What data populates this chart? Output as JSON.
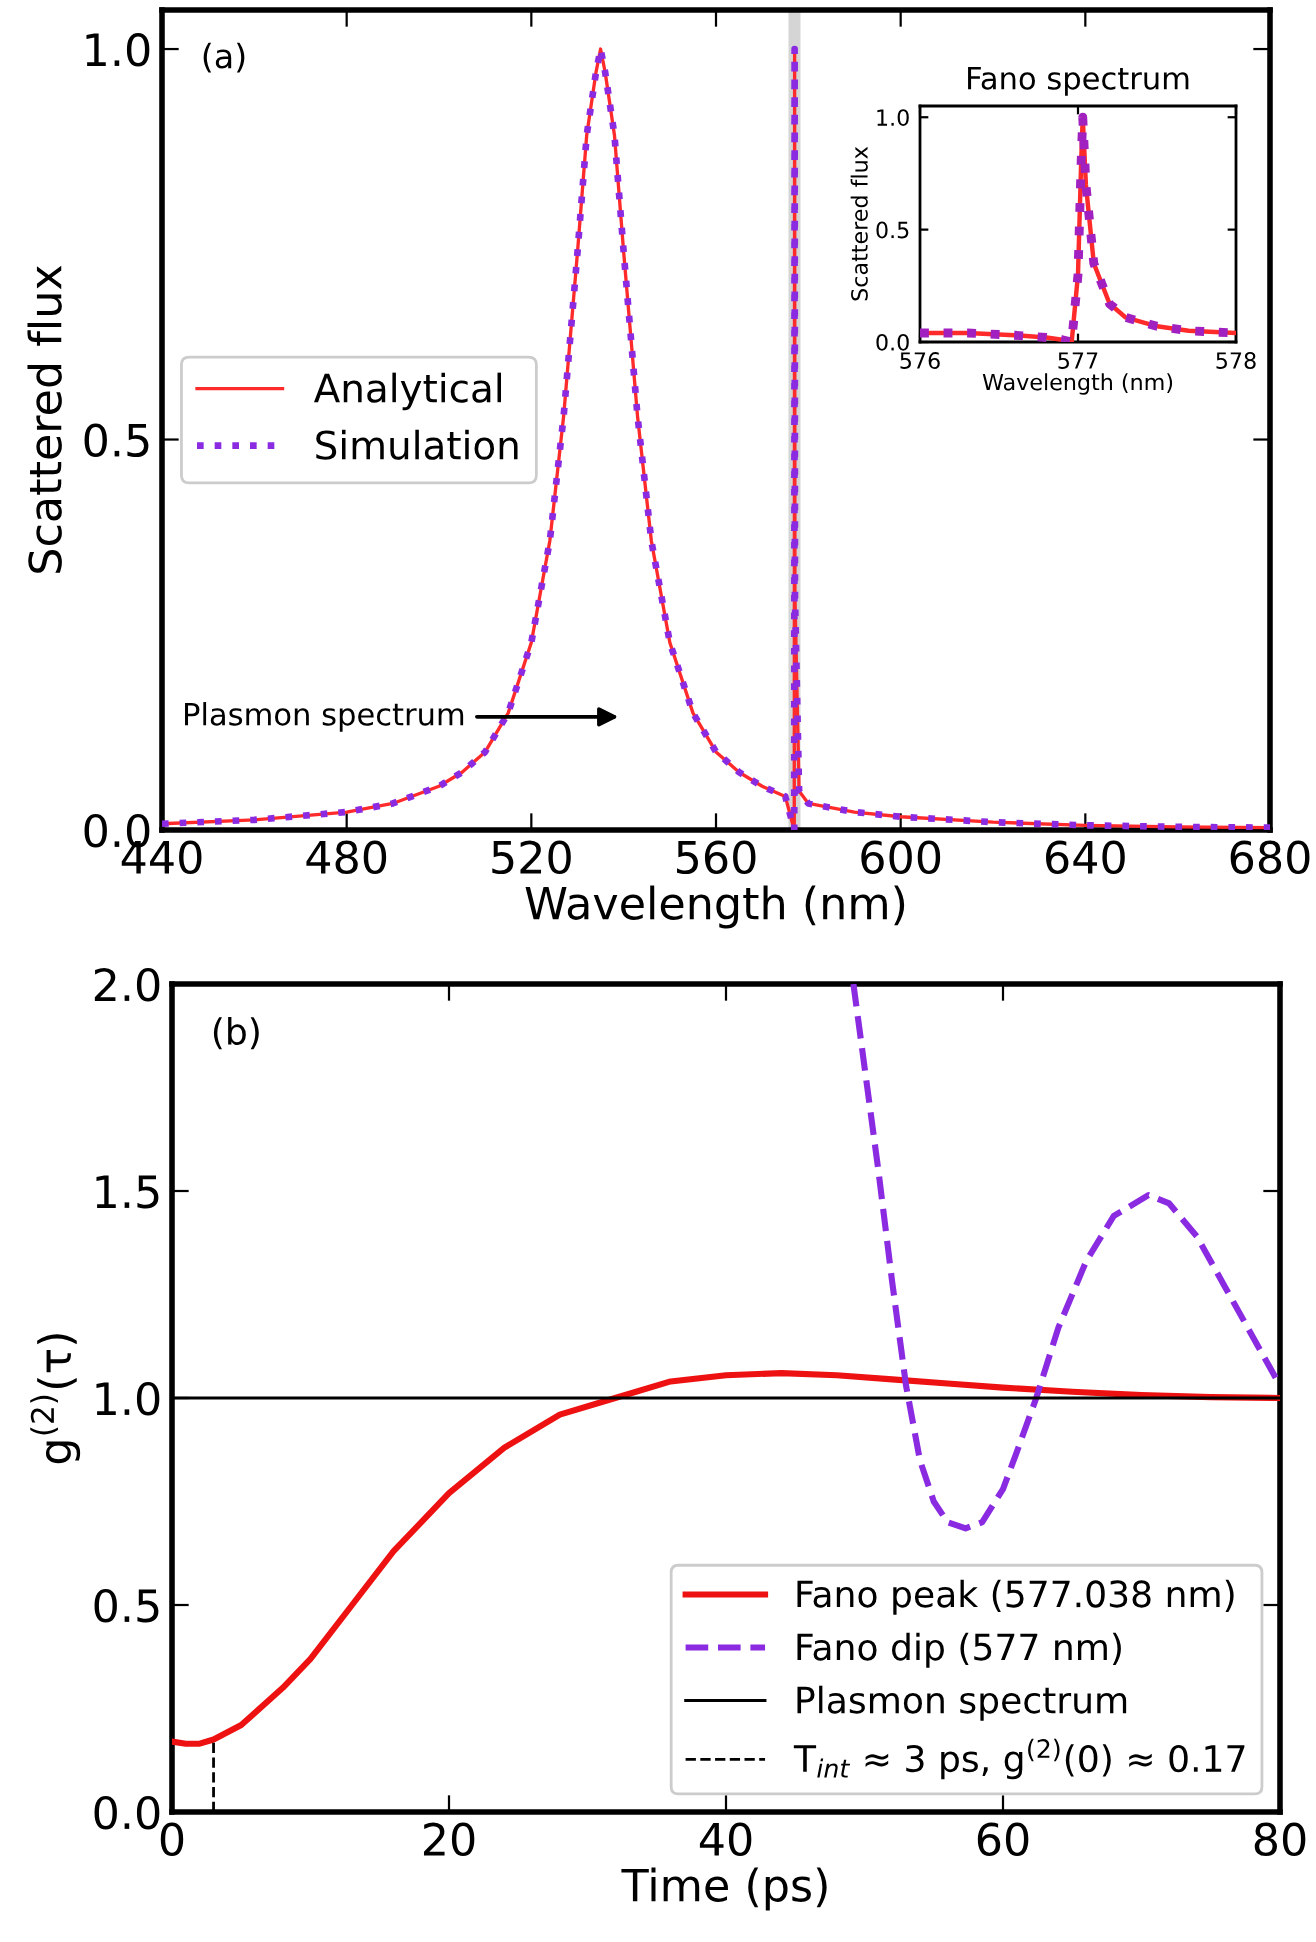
{
  "chart_data": [
    {
      "type": "line",
      "xlabel": "Wavelength (nm)",
      "ylabel": "Scattered flux",
      "xlim": [
        440,
        680
      ],
      "ylim": [
        0,
        1.05
      ],
      "xticks": [
        440,
        480,
        520,
        560,
        600,
        640,
        680
      ],
      "yticks": [
        {
          "value": 0,
          "label": "0.0"
        },
        {
          "value": 0.5,
          "label": "0.5"
        },
        {
          "value": 1,
          "label": "1.0"
        }
      ],
      "legend": "center left",
      "grid": false,
      "annotations": [
        "(a)",
        "Plasmon spectrum"
      ],
      "bands": [
        {
          "axis": "x",
          "from": 576,
          "to": 578,
          "color": "#888888"
        }
      ],
      "series": [
        {
          "name": "Analytical",
          "color": "#ff2a2a",
          "line_style": "solid",
          "x": [
            440,
            460,
            480,
            490,
            500,
            505,
            510,
            515,
            520,
            524,
            527,
            530,
            532,
            534,
            535,
            536,
            538,
            540,
            543,
            546,
            550,
            555,
            560,
            565,
            570,
            575,
            576.95,
            577.03,
            577.1,
            578,
            580,
            590,
            600,
            620,
            640,
            660,
            680
          ],
          "values": [
            0.008,
            0.013,
            0.023,
            0.034,
            0.056,
            0.074,
            0.1,
            0.15,
            0.24,
            0.37,
            0.53,
            0.74,
            0.89,
            0.97,
            1.0,
            0.97,
            0.89,
            0.74,
            0.53,
            0.37,
            0.24,
            0.15,
            0.1,
            0.074,
            0.056,
            0.043,
            0.0,
            1.0,
            0.3,
            0.05,
            0.034,
            0.023,
            0.017,
            0.01,
            0.006,
            0.004,
            0.003
          ]
        },
        {
          "name": "Simulation",
          "color": "#8a2be2",
          "line_style": "dotted",
          "x": [
            440,
            460,
            480,
            490,
            500,
            505,
            510,
            515,
            520,
            524,
            527,
            530,
            532,
            534,
            535,
            536,
            538,
            540,
            543,
            546,
            550,
            555,
            560,
            565,
            570,
            575,
            576.95,
            577.03,
            577.1,
            578,
            580,
            590,
            600,
            620,
            640,
            660,
            680
          ],
          "values": [
            0.008,
            0.013,
            0.023,
            0.034,
            0.056,
            0.074,
            0.1,
            0.15,
            0.24,
            0.37,
            0.53,
            0.74,
            0.89,
            0.97,
            1.0,
            0.97,
            0.89,
            0.74,
            0.53,
            0.37,
            0.24,
            0.15,
            0.1,
            0.074,
            0.056,
            0.043,
            0.0,
            1.0,
            0.3,
            0.05,
            0.034,
            0.023,
            0.017,
            0.01,
            0.006,
            0.004,
            0.003
          ]
        }
      ]
    },
    {
      "type": "line",
      "title": "Fano spectrum",
      "xlabel": "Wavelength (nm)",
      "ylabel": "Scattered flux",
      "xlim": [
        576,
        578
      ],
      "ylim": [
        0,
        1.05
      ],
      "xticks": [
        576,
        577,
        578
      ],
      "yticks": [
        {
          "value": 0,
          "label": "0.0"
        },
        {
          "value": 0.5,
          "label": "0.5"
        },
        {
          "value": 1,
          "label": "1.0"
        }
      ],
      "grid": false,
      "series": [
        {
          "color": "#ff2a2a",
          "line_style": "solid",
          "x": [
            576,
            576.3,
            576.6,
            576.8,
            576.9,
            576.96,
            577.0,
            577.02,
            577.03,
            577.05,
            577.1,
            577.2,
            577.3,
            577.5,
            577.7,
            578
          ],
          "values": [
            0.04,
            0.04,
            0.03,
            0.02,
            0.01,
            0.0,
            0.3,
            0.8,
            1.0,
            0.7,
            0.35,
            0.17,
            0.11,
            0.07,
            0.05,
            0.04
          ]
        },
        {
          "color": "#a020c0",
          "line_style": "dotted",
          "x": [
            576,
            576.3,
            576.6,
            576.8,
            576.9,
            576.96,
            577.0,
            577.02,
            577.03,
            577.05,
            577.1,
            577.2,
            577.3,
            577.5,
            577.7,
            578
          ],
          "values": [
            0.04,
            0.04,
            0.03,
            0.02,
            0.01,
            0.0,
            0.3,
            0.8,
            1.0,
            0.7,
            0.35,
            0.17,
            0.11,
            0.07,
            0.05,
            0.04
          ]
        }
      ]
    },
    {
      "type": "line",
      "xlabel": "Time (ps)",
      "ylabel": "g$^{(2)}$(τ)",
      "xlim": [
        0,
        80
      ],
      "ylim": [
        0,
        2
      ],
      "xticks": [
        0,
        20,
        40,
        60,
        80
      ],
      "yticks": [
        {
          "value": 0,
          "label": "0.0"
        },
        {
          "value": 0.5,
          "label": "0.5"
        },
        {
          "value": 1,
          "label": "1.0"
        },
        {
          "value": 1.5,
          "label": "1.5"
        },
        {
          "value": 2,
          "label": "2.0"
        }
      ],
      "legend": "lower right",
      "grid": false,
      "annotations": [
        "(b)"
      ],
      "series": [
        {
          "name": "Fano peak (577.038 nm)",
          "color": "#ee1111",
          "line_style": "solid",
          "x": [
            0,
            1,
            2,
            3,
            5,
            8,
            10,
            13,
            16,
            20,
            24,
            28,
            32,
            36,
            40,
            44,
            48,
            52,
            56,
            60,
            65,
            70,
            75,
            80
          ],
          "values": [
            0.17,
            0.165,
            0.165,
            0.175,
            0.21,
            0.3,
            0.37,
            0.5,
            0.63,
            0.77,
            0.88,
            0.96,
            1.0,
            1.04,
            1.055,
            1.06,
            1.055,
            1.045,
            1.035,
            1.025,
            1.015,
            1.007,
            1.002,
            1.0
          ]
        },
        {
          "name": "Fano dip (577 nm)",
          "color": "#8a2be2",
          "line_style": "dashed",
          "x": [
            49.2,
            50,
            51,
            52,
            53,
            54,
            55,
            56,
            57.3,
            58.5,
            60,
            61,
            62.4,
            64,
            66,
            68,
            70.5,
            72,
            74,
            76,
            78,
            80
          ],
          "values": [
            2.0,
            1.8,
            1.55,
            1.28,
            1.03,
            0.85,
            0.75,
            0.7,
            0.685,
            0.7,
            0.78,
            0.87,
            1.0,
            1.17,
            1.33,
            1.44,
            1.49,
            1.47,
            1.39,
            1.27,
            1.15,
            1.03
          ]
        },
        {
          "name": "Plasmon spectrum",
          "color": "#000000",
          "line_style": "solid",
          "x": [
            0,
            80
          ],
          "values": [
            1,
            1
          ]
        },
        {
          "name": "T$_{int}$ ≈ 3 ps, g$^{(2)}$(0) ≈ 0.17",
          "color": "#000000",
          "line_style": "dashed",
          "x": [
            3,
            3
          ],
          "values": [
            0,
            0.175
          ]
        }
      ]
    }
  ]
}
